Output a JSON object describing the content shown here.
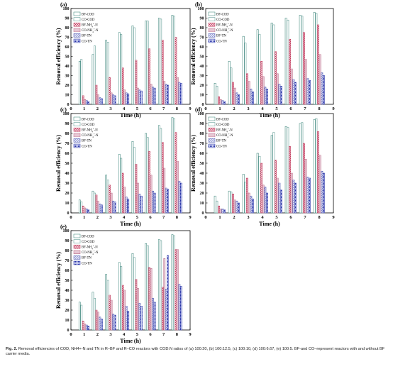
{
  "caption": {
    "label": "Fig. 2.",
    "text": "Removal efficiencies of COD, NH4+-N and TN in R–BF and R–CO reactors with COD:N ratios of (a) 100:20, (b) 100:12.5, (c) 100:10, (d) 100:6.67, (e) 100:5. BF-and CO–represent reactors with and without BF carrier media."
  },
  "colors": {
    "BF-COD": "#2b7a6f",
    "CO-COD": "#4a8f86",
    "BF-NH4": "#c03a5a",
    "CO-NH4": "#b86a86",
    "BF-TN": "#4a54b0",
    "CO-TN": "#2430a6"
  },
  "chart_data": [
    {
      "panel_label": "(a)",
      "type": "bar",
      "xlabel": "Time (h)",
      "ylabel": "Removal efficiency (%)",
      "categories": [
        "1",
        "2",
        "3",
        "4",
        "5",
        "6",
        "7",
        "8"
      ],
      "xticks": [
        "0",
        "1",
        "2",
        "3",
        "4",
        "5",
        "6",
        "7",
        "8",
        "9"
      ],
      "ylim": [
        0,
        100
      ],
      "yticks": [
        "0",
        "10",
        "20",
        "30",
        "40",
        "50",
        "60",
        "70",
        "80",
        "90",
        "100"
      ],
      "legend_position": "top-left",
      "series": [
        {
          "name": "BF-COD",
          "key": "BF-COD",
          "values": [
            45,
            52,
            67,
            75,
            82,
            87,
            90,
            93
          ]
        },
        {
          "name": "CO-COD",
          "key": "CO-COD",
          "values": [
            47,
            61,
            65,
            73,
            80,
            87,
            89,
            92
          ]
        },
        {
          "name": "BF-NH4+-N",
          "key": "BF-NH4",
          "values": [
            9,
            20,
            28,
            38,
            46,
            58,
            67,
            70
          ]
        },
        {
          "name": "CO-NH4+-N",
          "key": "CO-NH4",
          "values": [
            5,
            10,
            12,
            15,
            17,
            21,
            24,
            28
          ]
        },
        {
          "name": "BF-TN",
          "key": "BF-TN",
          "values": [
            4,
            7,
            10,
            12,
            15,
            18,
            21,
            23
          ]
        },
        {
          "name": "CO-TN",
          "key": "CO-TN",
          "values": [
            3,
            6,
            9,
            11,
            14,
            17,
            20,
            22
          ]
        }
      ]
    },
    {
      "panel_label": "(b)",
      "type": "bar",
      "xlabel": "Time (h)",
      "ylabel": "Removal efficiency (%)",
      "categories": [
        "1",
        "2",
        "3",
        "4",
        "5",
        "6",
        "7",
        "8"
      ],
      "xticks": [
        "0",
        "1",
        "2",
        "3",
        "4",
        "5",
        "6",
        "7",
        "8",
        "9"
      ],
      "ylim": [
        0,
        100
      ],
      "yticks": [
        "0",
        "10",
        "20",
        "30",
        "40",
        "50",
        "60",
        "70",
        "80",
        "90",
        "100"
      ],
      "legend_position": "top-left",
      "series": [
        {
          "name": "BF-COD",
          "key": "BF-COD",
          "values": [
            22,
            45,
            71,
            78,
            85,
            90,
            93,
            96
          ]
        },
        {
          "name": "CO-COD",
          "key": "CO-COD",
          "values": [
            19,
            38,
            64,
            73,
            83,
            88,
            92,
            95
          ]
        },
        {
          "name": "BF-NH4+-N",
          "key": "BF-NH4",
          "values": [
            8,
            23,
            32,
            45,
            55,
            68,
            75,
            83
          ]
        },
        {
          "name": "CO-NH4+-N",
          "key": "CO-NH4",
          "values": [
            5,
            17,
            24,
            29,
            32,
            37,
            47,
            52
          ]
        },
        {
          "name": "BF-TN",
          "key": "BF-TN",
          "values": [
            4,
            12,
            16,
            18,
            21,
            26,
            27,
            33
          ]
        },
        {
          "name": "CO-TN",
          "key": "CO-TN",
          "values": [
            3,
            10,
            13,
            16,
            19,
            23,
            25,
            30
          ]
        }
      ]
    },
    {
      "panel_label": "(c)",
      "type": "bar",
      "xlabel": "Time (h)",
      "ylabel": "Removal efficiency (%)",
      "categories": [
        "1",
        "2",
        "3",
        "4",
        "5",
        "6",
        "7",
        "8"
      ],
      "xticks": [
        "0",
        "1",
        "2",
        "3",
        "4",
        "5",
        "6",
        "7",
        "8",
        "9"
      ],
      "ylim": [
        0,
        100
      ],
      "yticks": [
        "0",
        "10",
        "20",
        "30",
        "40",
        "50",
        "60",
        "70",
        "80",
        "90",
        "100"
      ],
      "legend_position": "top-left",
      "series": [
        {
          "name": "BF-COD",
          "key": "BF-COD",
          "values": [
            13,
            22,
            38,
            59,
            72,
            80,
            88,
            96
          ]
        },
        {
          "name": "CO-COD",
          "key": "CO-COD",
          "values": [
            11,
            20,
            33,
            55,
            66,
            76,
            85,
            95
          ]
        },
        {
          "name": "BF-NH4+-N",
          "key": "BF-NH4",
          "values": [
            7,
            18,
            28,
            40,
            49,
            62,
            71,
            81
          ]
        },
        {
          "name": "CO-NH4+-N",
          "key": "CO-NH4",
          "values": [
            5,
            12,
            20,
            26,
            30,
            38,
            45,
            52
          ]
        },
        {
          "name": "BF-TN",
          "key": "BF-TN",
          "values": [
            4,
            9,
            12,
            16,
            19,
            22,
            25,
            32
          ]
        },
        {
          "name": "CO-TN",
          "key": "CO-TN",
          "values": [
            3,
            8,
            11,
            14,
            17,
            20,
            24,
            30
          ]
        }
      ]
    },
    {
      "panel_label": "(d)",
      "type": "bar",
      "xlabel": "Time (h)",
      "ylabel": "Removal efficiency (%)",
      "categories": [
        "1",
        "2",
        "3",
        "4",
        "5",
        "6",
        "7",
        "8"
      ],
      "xticks": [
        "0",
        "1",
        "2",
        "3",
        "4",
        "5",
        "6",
        "7",
        "8",
        "9"
      ],
      "ylim": [
        0,
        100
      ],
      "yticks": [
        "0",
        "10",
        "20",
        "30",
        "40",
        "50",
        "60",
        "70",
        "80",
        "90",
        "100"
      ],
      "legend_position": "top-left",
      "series": [
        {
          "name": "BF-COD",
          "key": "BF-COD",
          "values": [
            17,
            22,
            39,
            60,
            78,
            87,
            90,
            94
          ]
        },
        {
          "name": "CO-COD",
          "key": "CO-COD",
          "values": [
            12,
            21,
            31,
            57,
            81,
            86,
            91,
            95
          ]
        },
        {
          "name": "BF-NH4+-N",
          "key": "BF-NH4",
          "values": [
            7,
            19,
            35,
            50,
            53,
            67,
            70,
            82
          ]
        },
        {
          "name": "CO-NH4+-N",
          "key": "CO-NH4",
          "values": [
            4,
            13,
            20,
            28,
            35,
            40,
            54,
            58
          ]
        },
        {
          "name": "BF-TN",
          "key": "BF-TN",
          "values": [
            4,
            12,
            17,
            26,
            30,
            33,
            36,
            42
          ]
        },
        {
          "name": "CO-TN",
          "key": "CO-TN",
          "values": [
            3,
            10,
            14,
            20,
            23,
            30,
            35,
            40
          ]
        }
      ]
    },
    {
      "panel_label": "(e)",
      "type": "bar",
      "xlabel": "Time (h)",
      "ylabel": "Removal efficiency (%)",
      "categories": [
        "1",
        "2",
        "3",
        "4",
        "5",
        "6",
        "7",
        "8"
      ],
      "xticks": [
        "0",
        "1",
        "2",
        "3",
        "4",
        "5",
        "6",
        "7",
        "8",
        "9"
      ],
      "ylim": [
        0,
        100
      ],
      "yticks": [
        "0",
        "10",
        "20",
        "30",
        "40",
        "50",
        "60",
        "70",
        "80",
        "90",
        "100"
      ],
      "legend_position": "top-left",
      "series": [
        {
          "name": "BF-COD",
          "key": "BF-COD",
          "values": [
            28,
            38,
            56,
            68,
            77,
            87,
            91,
            96
          ]
        },
        {
          "name": "CO-COD",
          "key": "CO-COD",
          "values": [
            25,
            32,
            50,
            64,
            73,
            85,
            90,
            95
          ]
        },
        {
          "name": "BF-NH4+-N",
          "key": "BF-NH4",
          "values": [
            9,
            20,
            35,
            45,
            51,
            63,
            43,
            81
          ]
        },
        {
          "name": "CO-NH4+-N",
          "key": "CO-NH4",
          "values": [
            6,
            18,
            30,
            40,
            42,
            62,
            72,
            81
          ]
        },
        {
          "name": "BF-TN",
          "key": "BF-TN",
          "values": [
            5,
            13,
            16,
            24,
            27,
            32,
            41,
            46
          ]
        },
        {
          "name": "CO-TN",
          "key": "CO-TN",
          "values": [
            4,
            11,
            15,
            19,
            24,
            28,
            75,
            44
          ]
        }
      ]
    }
  ]
}
